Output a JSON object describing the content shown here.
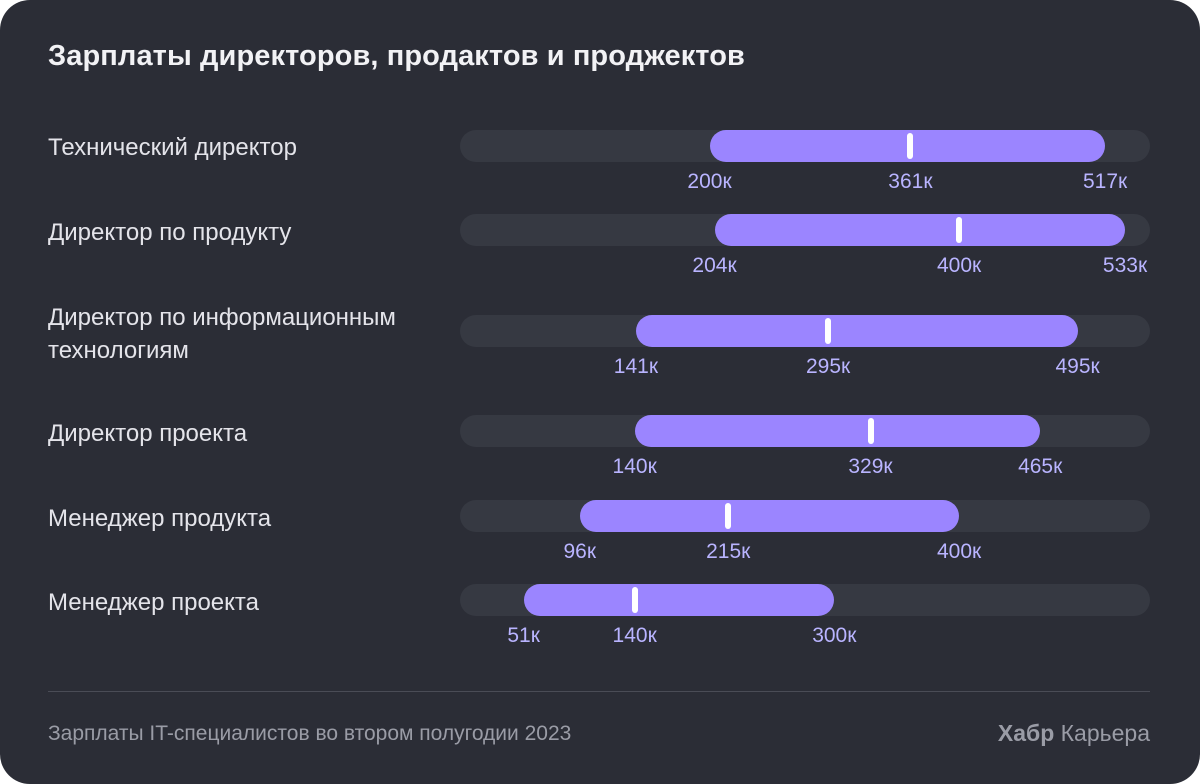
{
  "chart_data": {
    "type": "range-bar",
    "title": "Зарплаты директоров, продактов и проджектов",
    "xlim": [
      0,
      553
    ],
    "rows": [
      {
        "label": "Технический директор",
        "min": 200,
        "median": 361,
        "max": 517,
        "min_text": "200к",
        "median_text": "361к",
        "max_text": "517к"
      },
      {
        "label": "Директор по продукту",
        "min": 204,
        "median": 400,
        "max": 533,
        "min_text": "204к",
        "median_text": "400к",
        "max_text": "533к"
      },
      {
        "label": "Директор по информационным технологиям",
        "min": 141,
        "median": 295,
        "max": 495,
        "min_text": "141к",
        "median_text": "295к",
        "max_text": "495к"
      },
      {
        "label": "Директор проекта",
        "min": 140,
        "median": 329,
        "max": 465,
        "min_text": "140к",
        "median_text": "329к",
        "max_text": "465к"
      },
      {
        "label": "Менеджер продукта",
        "min": 96,
        "median": 215,
        "max": 400,
        "min_text": "96к",
        "median_text": "215к",
        "max_text": "400к"
      },
      {
        "label": "Менеджер проекта",
        "min": 51,
        "median": 140,
        "max": 300,
        "min_text": "51к",
        "median_text": "140к",
        "max_text": "300к"
      }
    ],
    "colors": {
      "background": "#2b2d36",
      "track": "#363942",
      "range": "#9b85ff",
      "median": "#ffffff",
      "value_text": "#b9b4ff"
    }
  },
  "footer": {
    "note": "Зарплаты IT-специалистов во втором полугодии 2023",
    "brand_bold": "Хабр",
    "brand_rest": "Карьера"
  }
}
